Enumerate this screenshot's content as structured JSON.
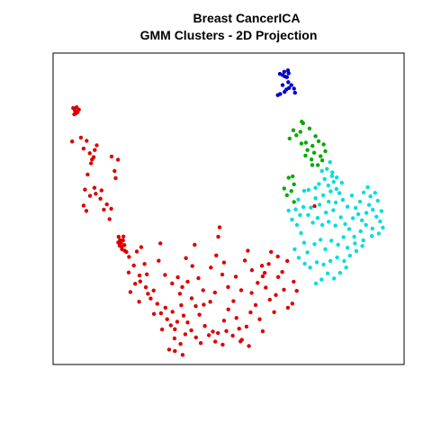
{
  "chart_data": {
    "type": "scatter",
    "title": "Breast CancerICA",
    "subtitle": "GMM Clusters - 2D Projection",
    "xlabel": "",
    "ylabel": "",
    "xlim": [
      0,
      100
    ],
    "ylim": [
      0,
      100
    ],
    "grid": false,
    "axes_ticks": false,
    "series": [
      {
        "color": "#dd0000",
        "points": [
          [
            4.6,
            83.0
          ],
          [
            5.1,
            84.1
          ],
          [
            4.1,
            83.8
          ],
          [
            5.4,
            82.4
          ],
          [
            4.4,
            81.7
          ],
          [
            5.8,
            83.3
          ],
          [
            4.9,
            82.0
          ],
          [
            3.8,
            72.5
          ],
          [
            6.4,
            73.8
          ],
          [
            7.2,
            70.1
          ],
          [
            8.1,
            72.7
          ],
          [
            9.0,
            68.5
          ],
          [
            9.7,
            66.4
          ],
          [
            10.2,
            67.2
          ],
          [
            9.4,
            65.1
          ],
          [
            10.5,
            69.6
          ],
          [
            11.1,
            71.2
          ],
          [
            8.4,
            61.3
          ],
          [
            7.6,
            56.2
          ],
          [
            10.4,
            56.8
          ],
          [
            12.2,
            53.1
          ],
          [
            12.5,
            55.9
          ],
          [
            13.2,
            49.4
          ],
          [
            14.9,
            46.2
          ],
          [
            15.4,
            49.7
          ],
          [
            14.1,
            51.2
          ],
          [
            15.5,
            67.4
          ],
          [
            16.4,
            62.5
          ],
          [
            16.7,
            60.1
          ],
          [
            17.4,
            66.3
          ],
          [
            7.2,
            50.8
          ],
          [
            8.0,
            49.0
          ],
          [
            9.1,
            54.1
          ],
          [
            10.8,
            54.8
          ],
          [
            17.6,
            40.2
          ],
          [
            18.3,
            38.1
          ],
          [
            19.0,
            40.3
          ],
          [
            18.6,
            36.0
          ],
          [
            19.3,
            37.4
          ],
          [
            18.0,
            39.1
          ],
          [
            19.4,
            35.5
          ],
          [
            17.9,
            37.2
          ],
          [
            18.9,
            39.0
          ],
          [
            17.5,
            38.3
          ],
          [
            19.9,
            35.1
          ],
          [
            18.5,
            36.8
          ],
          [
            20.7,
            33.4
          ],
          [
            22.1,
            30.5
          ],
          [
            23.8,
            27.1
          ],
          [
            25.3,
            31.0
          ],
          [
            24.0,
            25.1
          ],
          [
            25.7,
            23.1
          ],
          [
            26.3,
            20.9
          ],
          [
            27.1,
            19.3
          ],
          [
            28.0,
            22.0
          ],
          [
            29.1,
            17.5
          ],
          [
            30.2,
            14.3
          ],
          [
            31.5,
            16.2
          ],
          [
            32.0,
            12.3
          ],
          [
            33.1,
            10.2
          ],
          [
            34.3,
            8.9
          ],
          [
            35.0,
            11.4
          ],
          [
            33.6,
            14.8
          ],
          [
            36.2,
            17.0
          ],
          [
            36.9,
            13.5
          ],
          [
            38.1,
            11.2
          ],
          [
            37.4,
            7.2
          ],
          [
            39.3,
            19.4
          ],
          [
            40.5,
            16.7
          ],
          [
            41.6,
            13.8
          ],
          [
            42.9,
            17.2
          ],
          [
            43.2,
            10.0
          ],
          [
            44.4,
            6.9
          ],
          [
            45.6,
            8.1
          ],
          [
            46.3,
            4.7
          ],
          [
            47.1,
            7.6
          ],
          [
            48.5,
            3.7
          ],
          [
            48.9,
            11.8
          ],
          [
            50.2,
            15.6
          ],
          [
            51.7,
            18.4
          ],
          [
            52.6,
            12.7
          ],
          [
            53.4,
            9.1
          ],
          [
            54.2,
            5.3
          ],
          [
            55.6,
            9.8
          ],
          [
            56.8,
            14.6
          ],
          [
            57.1,
            21.2
          ],
          [
            58.3,
            17.1
          ],
          [
            59.5,
            12.3
          ],
          [
            60.4,
            8.2
          ],
          [
            61.3,
            23.0
          ],
          [
            62.5,
            18.9
          ],
          [
            63.8,
            14.7
          ],
          [
            64.3,
            20.5
          ],
          [
            65.0,
            26.6
          ],
          [
            66.7,
            22.3
          ],
          [
            67.9,
            16.2
          ],
          [
            57.2,
            28.9
          ],
          [
            58.9,
            24.6
          ],
          [
            60.2,
            30.4
          ],
          [
            54.0,
            22.1
          ],
          [
            52.4,
            26.7
          ],
          [
            50.1,
            23.2
          ],
          [
            46.2,
            21.3
          ],
          [
            44.8,
            18.2
          ],
          [
            42.7,
            22.1
          ],
          [
            41.3,
            26.2
          ],
          [
            39.5,
            30.3
          ],
          [
            37.6,
            33.0
          ],
          [
            30.0,
            38.0
          ],
          [
            29.5,
            32.1
          ],
          [
            31.4,
            27.3
          ],
          [
            33.5,
            24.4
          ],
          [
            35.2,
            26.5
          ],
          [
            26.0,
            27.5
          ],
          [
            22.5,
            24.3
          ],
          [
            21.1,
            21.5
          ],
          [
            23.7,
            18.2
          ],
          [
            35.8,
            20.9
          ],
          [
            36.0,
            3.9
          ],
          [
            34.2,
            5.8
          ],
          [
            30.5,
            8.8
          ],
          [
            28.1,
            14.1
          ],
          [
            45.0,
            29.8
          ],
          [
            46.6,
            33.9
          ],
          [
            48.9,
            31.5
          ],
          [
            48.4,
            27.4
          ],
          [
            55.1,
            32.2
          ],
          [
            56.0,
            35.5
          ],
          [
            62.2,
            31.0
          ],
          [
            61.0,
            28.0
          ],
          [
            69.2,
            17.6
          ],
          [
            69.6,
            25.0
          ],
          [
            66.2,
            28.3
          ],
          [
            64.9,
            33.5
          ],
          [
            62.9,
            35.1
          ],
          [
            60.4,
            26.8
          ],
          [
            47.2,
            40.2
          ],
          [
            47.6,
            43.4
          ],
          [
            40.2,
            37.5
          ],
          [
            38.1,
            25.0
          ],
          [
            36.5,
            23.2
          ],
          [
            56.3,
            3.2
          ],
          [
            53.8,
            4.8
          ],
          [
            51.5,
            6.7
          ],
          [
            49.6,
            8.3
          ],
          [
            42.0,
            4.2
          ],
          [
            40.6,
            6.1
          ],
          [
            39.2,
            8.5
          ],
          [
            32.6,
            2.0
          ],
          [
            34.3,
            1.5
          ],
          [
            36.6,
            0.2
          ],
          [
            23.0,
            35.2
          ],
          [
            24.3,
            36.7
          ],
          [
            20.6,
            28.1
          ],
          [
            75.8,
            50.6
          ],
          [
            67.7,
            32.0
          ],
          [
            70.5,
            21.9
          ]
        ]
      },
      {
        "color": "#00aa00",
        "points": [
          [
            68.4,
            73.5
          ],
          [
            70.4,
            74.6
          ],
          [
            71.6,
            75.8
          ],
          [
            72.4,
            78.7
          ],
          [
            73.2,
            72.1
          ],
          [
            74.3,
            76.9
          ],
          [
            75.2,
            71.0
          ],
          [
            76.1,
            74.3
          ],
          [
            77.0,
            72.6
          ],
          [
            73.7,
            69.6
          ],
          [
            71.9,
            71.8
          ],
          [
            74.9,
            66.4
          ],
          [
            75.7,
            68.7
          ],
          [
            76.8,
            64.5
          ],
          [
            78.1,
            66.1
          ],
          [
            79.0,
            69.2
          ],
          [
            78.5,
            71.5
          ],
          [
            77.6,
            67.5
          ],
          [
            75.1,
            64.5
          ],
          [
            73.1,
            67.7
          ],
          [
            69.5,
            76.3
          ],
          [
            72.0,
            79.2
          ],
          [
            66.8,
            56.6
          ],
          [
            67.6,
            54.3
          ],
          [
            68.9,
            55.7
          ],
          [
            69.3,
            60.7
          ],
          [
            69.7,
            58.0
          ],
          [
            68.1,
            60.2
          ],
          [
            69.7,
            52.0
          ]
        ]
      },
      {
        "color": "#00dddd",
        "points": [
          [
            79.5,
            63.2
          ],
          [
            80.4,
            65.5
          ],
          [
            81.1,
            62.0
          ],
          [
            78.8,
            59.8
          ],
          [
            79.9,
            57.6
          ],
          [
            81.5,
            58.8
          ],
          [
            80.6,
            55.6
          ],
          [
            82.3,
            56.4
          ],
          [
            78.4,
            54.3
          ],
          [
            80.0,
            52.1
          ],
          [
            82.1,
            51.8
          ],
          [
            83.2,
            55.0
          ],
          [
            81.4,
            49.2
          ],
          [
            79.2,
            48.4
          ],
          [
            77.3,
            51.1
          ],
          [
            76.1,
            53.3
          ],
          [
            74.7,
            50.1
          ],
          [
            73.9,
            47.6
          ],
          [
            75.3,
            45.0
          ],
          [
            76.7,
            46.6
          ],
          [
            78.1,
            44.2
          ],
          [
            80.0,
            45.3
          ],
          [
            82.0,
            44.0
          ],
          [
            83.6,
            46.8
          ],
          [
            84.9,
            44.5
          ],
          [
            86.1,
            42.8
          ],
          [
            87.6,
            40.2
          ],
          [
            84.4,
            40.1
          ],
          [
            82.8,
            37.5
          ],
          [
            80.8,
            38.9
          ],
          [
            79.0,
            36.0
          ],
          [
            77.6,
            39.2
          ],
          [
            75.8,
            37.7
          ],
          [
            73.7,
            34.9
          ],
          [
            72.7,
            38.2
          ],
          [
            71.8,
            41.5
          ],
          [
            70.6,
            44.2
          ],
          [
            71.5,
            47.6
          ],
          [
            72.5,
            50.3
          ],
          [
            69.9,
            36.0
          ],
          [
            71.1,
            33.1
          ],
          [
            72.9,
            31.1
          ],
          [
            74.5,
            29.8
          ],
          [
            76.5,
            31.6
          ],
          [
            78.5,
            30.8
          ],
          [
            80.5,
            32.0
          ],
          [
            82.5,
            33.2
          ],
          [
            84.6,
            32.0
          ],
          [
            86.3,
            33.8
          ],
          [
            88.2,
            35.4
          ],
          [
            90.0,
            37.1
          ],
          [
            85.2,
            29.8
          ],
          [
            83.4,
            28.0
          ],
          [
            81.6,
            26.1
          ],
          [
            79.7,
            27.8
          ],
          [
            77.9,
            25.7
          ],
          [
            76.2,
            24.4
          ],
          [
            87.2,
            46.5
          ],
          [
            88.8,
            47.9
          ],
          [
            89.9,
            45.8
          ],
          [
            91.2,
            48.3
          ],
          [
            92.0,
            51.0
          ],
          [
            93.1,
            49.4
          ],
          [
            94.2,
            47.0
          ],
          [
            95.3,
            45.4
          ],
          [
            95.7,
            48.9
          ],
          [
            94.6,
            52.4
          ],
          [
            93.8,
            55.1
          ],
          [
            92.4,
            53.9
          ],
          [
            91.6,
            57.0
          ],
          [
            90.4,
            55.2
          ],
          [
            89.3,
            52.1
          ],
          [
            88.0,
            50.0
          ],
          [
            96.1,
            43.3
          ],
          [
            94.9,
            41.3
          ],
          [
            93.0,
            43.0
          ],
          [
            91.1,
            44.2
          ],
          [
            89.5,
            42.1
          ],
          [
            92.8,
            40.5
          ],
          [
            90.3,
            39.0
          ],
          [
            87.8,
            38.0
          ],
          [
            85.6,
            36.5
          ],
          [
            84.2,
            52.7
          ],
          [
            85.6,
            50.4
          ],
          [
            86.9,
            54.2
          ],
          [
            83.9,
            58.5
          ],
          [
            82.4,
            60.3
          ],
          [
            81.0,
            60.8
          ],
          [
            78.0,
            62.5
          ],
          [
            77.1,
            58.1
          ],
          [
            76.1,
            56.8
          ],
          [
            74.0,
            56.1
          ],
          [
            72.7,
            55.8
          ],
          [
            71.0,
            52.8
          ],
          [
            70.2,
            49.5
          ],
          [
            69.1,
            46.0
          ],
          [
            68.1,
            49.1
          ]
        ]
      },
      {
        "color": "#0000cc",
        "points": [
          [
            64.9,
            88.2
          ],
          [
            65.6,
            88.6
          ],
          [
            66.9,
            89.3
          ],
          [
            67.4,
            90.1
          ],
          [
            68.2,
            90.6
          ],
          [
            68.9,
            91.6
          ],
          [
            69.7,
            90.4
          ],
          [
            68.0,
            92.6
          ],
          [
            67.6,
            94.3
          ],
          [
            66.3,
            95.0
          ],
          [
            65.5,
            95.4
          ],
          [
            66.8,
            96.1
          ],
          [
            67.9,
            96.6
          ],
          [
            68.1,
            95.6
          ],
          [
            67.0,
            94.5
          ],
          [
            66.3,
            91.6
          ],
          [
            70.0,
            89.0
          ]
        ]
      }
    ]
  }
}
